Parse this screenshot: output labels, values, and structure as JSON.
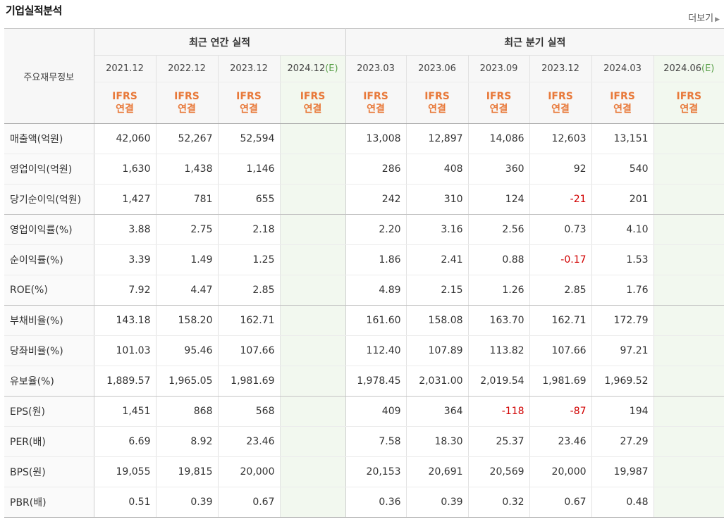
{
  "header": {
    "title": "기업실적분석",
    "more_label": "더보기"
  },
  "table": {
    "row_header": "주요재무정보",
    "group_annual": "최근 연간 실적",
    "group_quarter": "최근 분기 실적",
    "estimate_mark": "(E)",
    "periods": [
      {
        "label": "2021.12",
        "est": false
      },
      {
        "label": "2022.12",
        "est": false
      },
      {
        "label": "2023.12",
        "est": false
      },
      {
        "label": "2024.12",
        "est": true
      },
      {
        "label": "2023.03",
        "est": false
      },
      {
        "label": "2023.06",
        "est": false
      },
      {
        "label": "2023.09",
        "est": false
      },
      {
        "label": "2023.12",
        "est": false
      },
      {
        "label": "2024.03",
        "est": false
      },
      {
        "label": "2024.06",
        "est": true
      }
    ],
    "ifrs_top": "IFRS",
    "ifrs_bottom": "연결",
    "rows": [
      {
        "label": "매출액(억원)",
        "values": [
          "42,060",
          "52,267",
          "52,594",
          "",
          "13,008",
          "12,897",
          "14,086",
          "12,603",
          "13,151",
          ""
        ]
      },
      {
        "label": "영업이익(억원)",
        "values": [
          "1,630",
          "1,438",
          "1,146",
          "",
          "286",
          "408",
          "360",
          "92",
          "540",
          ""
        ]
      },
      {
        "label": "당기순이익(억원)",
        "values": [
          "1,427",
          "781",
          "655",
          "",
          "242",
          "310",
          "124",
          "-21",
          "201",
          ""
        ]
      },
      {
        "label": "영업이익률(%)",
        "values": [
          "3.88",
          "2.75",
          "2.18",
          "",
          "2.20",
          "3.16",
          "2.56",
          "0.73",
          "4.10",
          ""
        ]
      },
      {
        "label": "순이익률(%)",
        "values": [
          "3.39",
          "1.49",
          "1.25",
          "",
          "1.86",
          "2.41",
          "0.88",
          "-0.17",
          "1.53",
          ""
        ]
      },
      {
        "label": "ROE(%)",
        "values": [
          "7.92",
          "4.47",
          "2.85",
          "",
          "4.89",
          "2.15",
          "1.26",
          "2.85",
          "1.76",
          ""
        ]
      },
      {
        "label": "부채비율(%)",
        "values": [
          "143.18",
          "158.20",
          "162.71",
          "",
          "161.60",
          "158.08",
          "163.70",
          "162.71",
          "172.79",
          ""
        ]
      },
      {
        "label": "당좌비율(%)",
        "values": [
          "101.03",
          "95.46",
          "107.66",
          "",
          "112.40",
          "107.89",
          "113.82",
          "107.66",
          "97.21",
          ""
        ]
      },
      {
        "label": "유보율(%)",
        "values": [
          "1,889.57",
          "1,965.05",
          "1,981.69",
          "",
          "1,978.45",
          "2,031.00",
          "2,019.54",
          "1,981.69",
          "1,969.52",
          ""
        ]
      },
      {
        "label": "EPS(원)",
        "values": [
          "1,451",
          "868",
          "568",
          "",
          "409",
          "364",
          "-118",
          "-87",
          "194",
          ""
        ]
      },
      {
        "label": "PER(배)",
        "values": [
          "6.69",
          "8.92",
          "23.46",
          "",
          "7.58",
          "18.30",
          "25.37",
          "23.46",
          "27.29",
          ""
        ]
      },
      {
        "label": "BPS(원)",
        "values": [
          "19,055",
          "19,815",
          "20,000",
          "",
          "20,153",
          "20,691",
          "20,569",
          "20,000",
          "19,987",
          ""
        ]
      },
      {
        "label": "PBR(배)",
        "values": [
          "0.51",
          "0.39",
          "0.67",
          "",
          "0.36",
          "0.39",
          "0.32",
          "0.67",
          "0.48",
          ""
        ]
      }
    ]
  },
  "colors": {
    "ifrs_orange": "#e8793a",
    "estimate_green": "#5aa04a",
    "estimate_bg": "#f2f8ef",
    "negative_red": "#d10000"
  }
}
